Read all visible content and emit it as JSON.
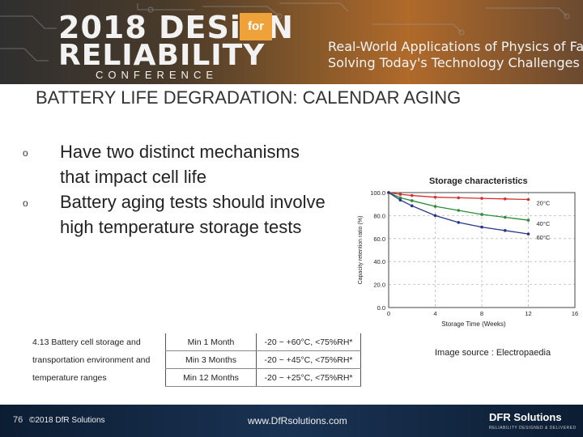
{
  "header": {
    "logo_2018_design": "2018 DESiGN",
    "logo_for": "for",
    "logo_reliability": "RELIABILITY",
    "logo_conference": "CONFERENCE",
    "tagline_1": "Real-World Applications of Physics of Failure",
    "tagline_2": "Solving Today's Technology Challenges"
  },
  "slide": {
    "title": "BATTERY LIFE DEGRADATION: CALENDAR AGING",
    "bullets": [
      "Have two distinct mechanisms that impact cell life",
      "Battery aging tests should involve high temperature storage tests"
    ],
    "image_source": "Image source : Electropaedia"
  },
  "table": {
    "label_lines": [
      "4.13   Battery   cell   storage   and",
      "transportation   environment   and",
      "temperature ranges"
    ],
    "rows": [
      {
        "duration": "Min 1 Month",
        "range": "-20 ~ +60°C, <75%RH*"
      },
      {
        "duration": "Min 3 Months",
        "range": "-20 ~ +45°C, <75%RH*"
      },
      {
        "duration": "Min 12 Months",
        "range": "-20 ~ +25°C, <75%RH*"
      }
    ]
  },
  "chart_data": {
    "type": "line",
    "title": "Storage characteristics",
    "xlabel": "Storage Time (Weeks)",
    "ylabel": "Capacity retention ratio (%)",
    "xlim": [
      0,
      16
    ],
    "ylim": [
      0,
      100
    ],
    "xticks": [
      0,
      4,
      8,
      12,
      16
    ],
    "yticks": [
      0.0,
      20.0,
      40.0,
      60.0,
      80.0,
      100.0
    ],
    "ytick_labels": [
      "0.0",
      "20.0",
      "40.0",
      "60.0",
      "80.0",
      "100.0"
    ],
    "grid": true,
    "series": [
      {
        "name": "20°C",
        "color": "#d62f2f",
        "x": [
          0,
          1,
          2,
          4,
          6,
          8,
          10,
          12
        ],
        "y": [
          100,
          98.5,
          97.5,
          96,
          95.5,
          95,
          94.5,
          94
        ]
      },
      {
        "name": "40°C",
        "color": "#2e8b3a",
        "x": [
          0,
          1,
          2,
          4,
          6,
          8,
          10,
          12
        ],
        "y": [
          100,
          95.5,
          93,
          88,
          84.5,
          81,
          78.5,
          76
        ]
      },
      {
        "name": "60°C",
        "color": "#26348a",
        "x": [
          0,
          1,
          2,
          4,
          6,
          8,
          10,
          12
        ],
        "y": [
          100,
          93.5,
          88.5,
          80,
          74,
          70,
          67,
          64
        ]
      }
    ]
  },
  "footer": {
    "page_number": "76",
    "copyright": "©2018 DfR Solutions",
    "website": "www.DfRsolutions.com",
    "brand": "DFR Solutions",
    "brand_tagline": "RELIABILITY DESIGNED & DELIVERED"
  }
}
